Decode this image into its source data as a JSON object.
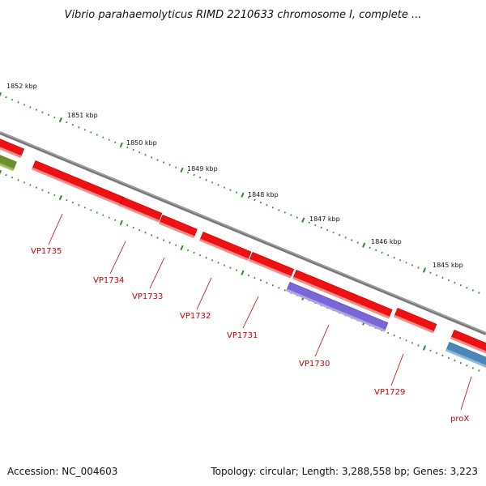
{
  "title": "Vibrio parahaemolyticus RIMD 2210633 chromosome I, complete ...",
  "footer": {
    "accession": "Accession: NC_004603",
    "summary": "Topology: circular; Length: 3,288,558 bp; Genes: 3,223"
  },
  "colors": {
    "gene": "#ee1111",
    "label": "#cc0000",
    "backbone": "#888888",
    "ticks": "#2d8a2d",
    "gene_green": "#6f8f2a",
    "gene_purple": "#7a66d6",
    "gene_blue": "#4a86b8"
  },
  "kbp_labels": [
    "1852 kbp",
    "1851 kbp",
    "1850 kbp",
    "1849 kbp",
    "1848 kbp",
    "1847 kbp",
    "1846 kbp",
    "1845 kbp"
  ],
  "gene_labels": [
    "VP1735",
    "VP1734",
    "VP1733",
    "VP1732",
    "VP1731",
    "VP1730",
    "VP1729",
    "proX"
  ]
}
